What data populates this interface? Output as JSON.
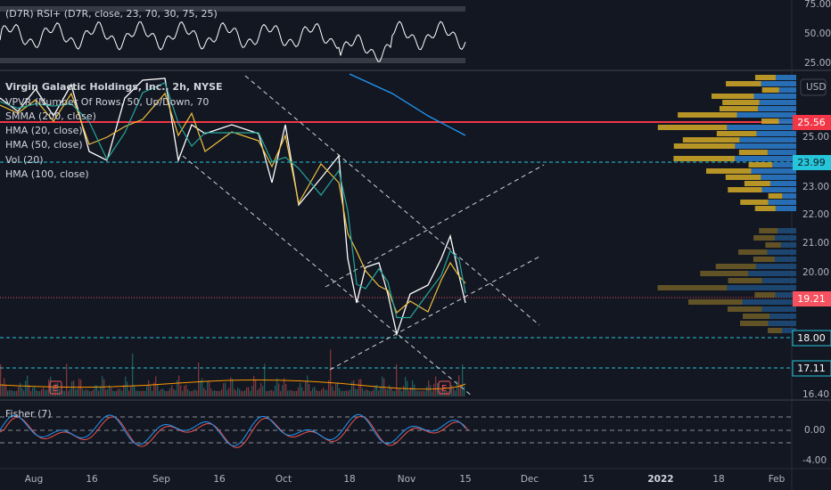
{
  "rsi_pane": {
    "legend": "(D7R) RSI+ (D7R, close, 23, 70, 30, 75, 25)",
    "axis_labels": [
      "75.00",
      "50.00",
      "25.00"
    ]
  },
  "main_pane": {
    "legend": [
      "Virgin Galactic Holdings, Inc., 2h, NYSE",
      "VPVR (Number Of Rows, 50, Up/Down, 70",
      "SMMA (200, close)",
      "HMA (20, close)",
      "HMA (50, close)",
      "Vol (20)",
      "HMA (100, close)"
    ],
    "currency": "USD",
    "axis_labels": [
      "25.00",
      "23.00",
      "22.00",
      "21.00",
      "20.00",
      "16.40"
    ],
    "price_tags": [
      "25.56",
      "23.99",
      "19.21",
      "18.00",
      "17.11"
    ],
    "earnings_marker": "E"
  },
  "fisher_pane": {
    "legend": "Fisher (7)",
    "axis_labels": [
      "0.00",
      "-4.00"
    ]
  },
  "time_axis": [
    "Aug",
    "16",
    "Sep",
    "16",
    "Oct",
    "18",
    "Nov",
    "15",
    "Dec",
    "15",
    "2022",
    "18",
    "Feb"
  ]
}
